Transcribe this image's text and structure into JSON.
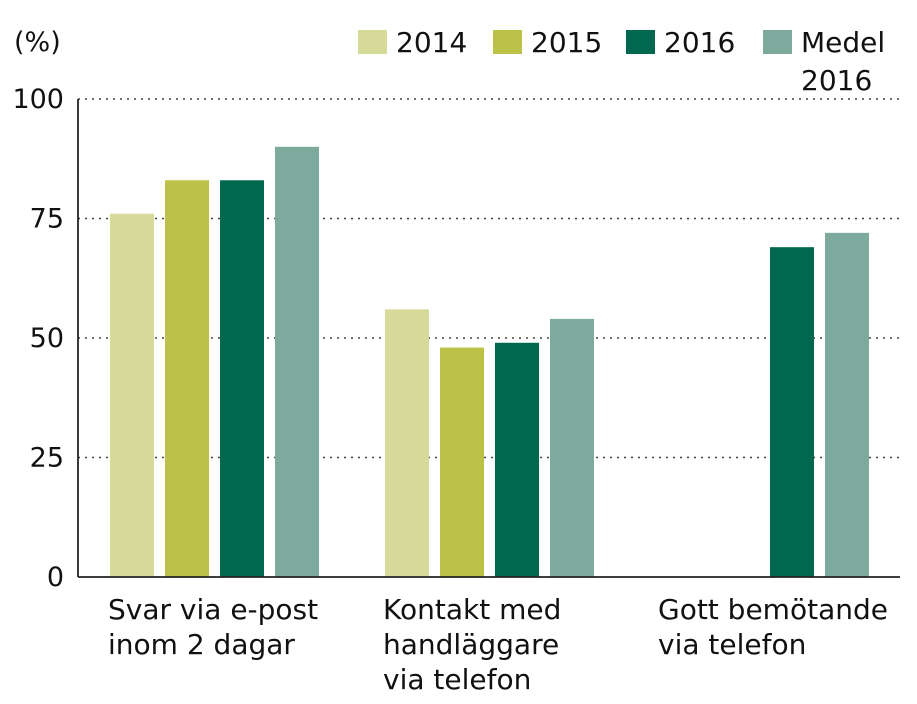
{
  "chart_data": {
    "type": "bar",
    "unit_label": "(%)",
    "title": "",
    "xlabel": "",
    "ylabel": "(%)",
    "ylim": [
      0,
      100
    ],
    "yticks": [
      0,
      25,
      50,
      75,
      100
    ],
    "grid": true,
    "legend_position": "top-right",
    "categories": [
      [
        "Svar via e-post",
        "inom 2 dagar"
      ],
      [
        "Kontakt med",
        "handläggare",
        "via telefon"
      ],
      [
        "Gott bemötande",
        "via telefon"
      ]
    ],
    "series": [
      {
        "name": [
          "2014"
        ],
        "color": "#d6db9a",
        "values": [
          76,
          56,
          null
        ]
      },
      {
        "name": [
          "2015"
        ],
        "color": "#bcc148",
        "values": [
          83,
          48,
          null
        ]
      },
      {
        "name": [
          "2016"
        ],
        "color": "#00684f",
        "values": [
          83,
          49,
          69
        ]
      },
      {
        "name": [
          "Medel",
          "2016"
        ],
        "color": "#7eaa9e",
        "values": [
          90,
          54,
          72
        ]
      }
    ]
  }
}
